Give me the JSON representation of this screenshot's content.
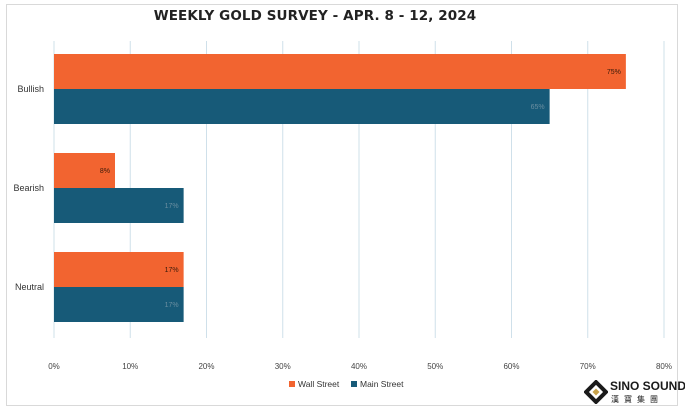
{
  "chart_data": {
    "type": "bar",
    "orientation": "horizontal",
    "title": "WEEKLY GOLD SURVEY - APR. 8 - 12, 2024",
    "categories": [
      "Bullish",
      "Bearish",
      "Neutral"
    ],
    "series": [
      {
        "name": "Wall Street",
        "values": [
          75,
          8,
          17
        ],
        "labels": [
          "75%",
          "8%",
          "17%"
        ],
        "color": "#f26430"
      },
      {
        "name": "Main Street",
        "values": [
          65,
          17,
          17
        ],
        "labels": [
          "65%",
          "17%",
          "17%"
        ],
        "color": "#175a78"
      }
    ],
    "xlim": [
      0,
      80
    ],
    "xticks": [
      "0%",
      "10%",
      "20%",
      "30%",
      "40%",
      "50%",
      "60%",
      "70%",
      "80%"
    ],
    "grid": true,
    "legend_placement": "bottom"
  },
  "logo": {
    "name": "SINO SOUND",
    "sub": "漢寶集團"
  },
  "colors": {
    "wall_street": "#f26430",
    "main_street": "#175a78",
    "grid": "#cfe0ea"
  }
}
